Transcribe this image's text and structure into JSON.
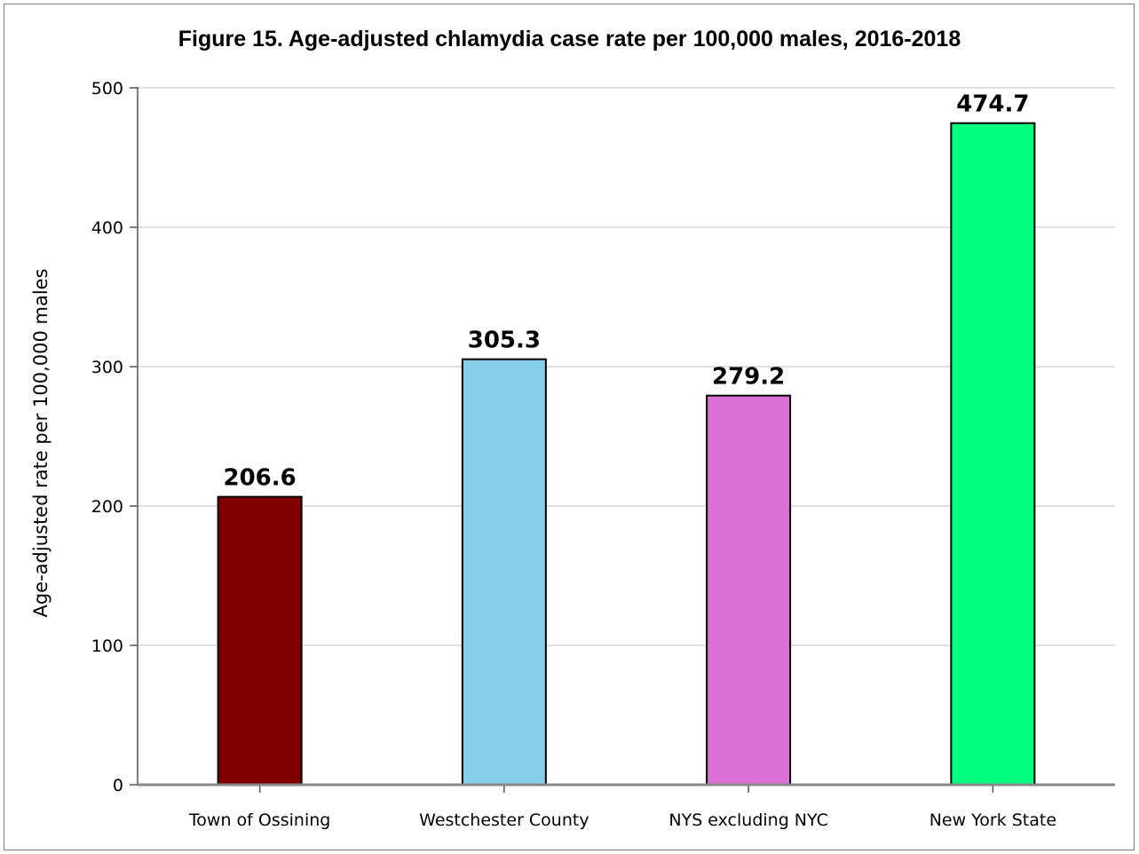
{
  "chart_data": {
    "type": "bar",
    "title": "Figure 15. Age-adjusted chlamydia case rate per 100,000 males, 2016-2018",
    "xlabel": "",
    "ylabel": "Age-adjusted rate per 100,000 males",
    "ylim": [
      0,
      500
    ],
    "yticks": [
      0,
      100,
      200,
      300,
      400,
      500
    ],
    "grid": true,
    "categories": [
      "Town of Ossining",
      "Westchester County",
      "NYS excluding NYC",
      "New York State"
    ],
    "values": [
      206.6,
      305.3,
      279.2,
      474.7
    ],
    "value_labels": [
      "206.6",
      "305.3",
      "279.2",
      "474.7"
    ],
    "colors": [
      "#800000",
      "#87ceeb",
      "#da70d6",
      "#00ff7f"
    ]
  }
}
